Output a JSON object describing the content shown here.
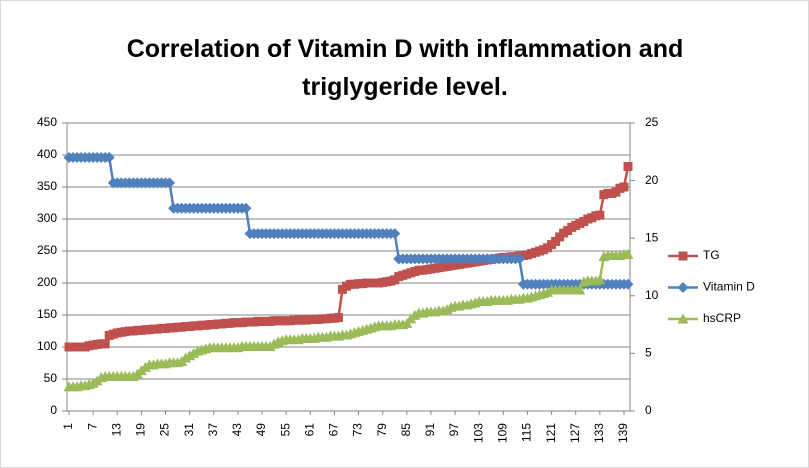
{
  "chart_data": {
    "type": "line",
    "title": "Correlation of Vitamin D with inflammation and triglygeride level.",
    "categories": [
      1,
      null,
      null,
      null,
      null,
      null,
      7,
      null,
      null,
      null,
      null,
      null,
      13,
      null,
      null,
      null,
      null,
      null,
      19,
      null,
      null,
      null,
      null,
      null,
      25,
      null,
      null,
      null,
      null,
      null,
      31,
      null,
      null,
      null,
      null,
      null,
      37,
      null,
      null,
      null,
      null,
      null,
      43,
      null,
      null,
      null,
      null,
      null,
      49,
      null,
      null,
      null,
      null,
      null,
      55,
      null,
      null,
      null,
      null,
      null,
      61,
      null,
      null,
      null,
      null,
      null,
      67,
      null,
      null,
      null,
      null,
      null,
      73,
      null,
      null,
      null,
      null,
      null,
      79,
      null,
      null,
      null,
      null,
      null,
      85,
      null,
      null,
      null,
      null,
      null,
      91,
      null,
      null,
      null,
      null,
      null,
      97,
      null,
      null,
      null,
      null,
      null,
      103,
      null,
      null,
      null,
      null,
      null,
      109,
      null,
      null,
      null,
      null,
      null,
      115,
      null,
      null,
      null,
      null,
      null,
      121,
      null,
      null,
      null,
      null,
      null,
      127,
      null,
      null,
      null,
      null,
      null,
      133,
      null,
      null,
      null,
      null,
      null,
      139,
      null
    ],
    "series": [
      {
        "name": "TG",
        "color": "#c0504d",
        "marker": "square",
        "values": [
          100,
          100,
          100,
          100,
          100,
          102,
          103,
          104,
          105,
          105,
          118,
          120,
          122,
          123,
          124,
          125,
          125,
          126,
          126,
          127,
          127,
          128,
          128,
          129,
          129,
          130,
          130,
          131,
          131,
          132,
          132,
          133,
          133,
          134,
          134,
          135,
          135,
          136,
          136,
          137,
          137,
          138,
          138,
          138,
          139,
          139,
          139,
          140,
          140,
          140,
          140,
          141,
          141,
          141,
          141,
          141,
          142,
          142,
          142,
          142,
          143,
          143,
          143,
          144,
          144,
          145,
          145,
          146,
          190,
          195,
          198,
          198,
          199,
          199,
          200,
          200,
          200,
          200,
          201,
          202,
          203,
          205,
          210,
          212,
          214,
          216,
          218,
          220,
          220,
          221,
          222,
          223,
          224,
          225,
          226,
          227,
          228,
          229,
          230,
          231,
          232,
          233,
          234,
          235,
          236,
          237,
          238,
          239,
          240,
          240,
          241,
          241,
          242,
          243,
          244,
          246,
          248,
          250,
          252,
          255,
          260,
          265,
          272,
          278,
          282,
          287,
          290,
          293,
          296,
          300,
          302,
          305,
          306,
          338,
          340,
          340,
          342,
          348,
          350,
          382
        ]
      },
      {
        "name": "Vitamin D",
        "color": "#4f81bd",
        "marker": "diamond",
        "axis": "y2",
        "values": [
          22,
          22,
          22,
          22,
          22,
          22,
          22,
          22,
          22,
          22,
          22,
          19.8,
          19.8,
          19.8,
          19.8,
          19.8,
          19.8,
          19.8,
          19.8,
          19.8,
          19.8,
          19.8,
          19.8,
          19.8,
          19.8,
          19.8,
          17.6,
          17.6,
          17.6,
          17.6,
          17.6,
          17.6,
          17.6,
          17.6,
          17.6,
          17.6,
          17.6,
          17.6,
          17.6,
          17.6,
          17.6,
          17.6,
          17.6,
          17.6,
          17.6,
          15.4,
          15.4,
          15.4,
          15.4,
          15.4,
          15.4,
          15.4,
          15.4,
          15.4,
          15.4,
          15.4,
          15.4,
          15.4,
          15.4,
          15.4,
          15.4,
          15.4,
          15.4,
          15.4,
          15.4,
          15.4,
          15.4,
          15.4,
          15.4,
          15.4,
          15.4,
          15.4,
          15.4,
          15.4,
          15.4,
          15.4,
          15.4,
          15.4,
          15.4,
          15.4,
          15.4,
          15.4,
          13.2,
          13.2,
          13.2,
          13.2,
          13.2,
          13.2,
          13.2,
          13.2,
          13.2,
          13.2,
          13.2,
          13.2,
          13.2,
          13.2,
          13.2,
          13.2,
          13.2,
          13.2,
          13.2,
          13.2,
          13.2,
          13.2,
          13.2,
          13.2,
          13.2,
          13.2,
          13.2,
          13.2,
          13.2,
          13.2,
          13.2,
          11,
          11,
          11,
          11,
          11,
          11,
          11,
          11,
          11,
          11,
          11,
          11,
          11,
          11,
          11,
          11,
          11,
          11,
          11,
          11,
          11,
          11,
          11,
          11,
          11,
          11,
          11
        ]
      },
      {
        "name": "hsCRP",
        "color": "#9bbb59",
        "marker": "triangle",
        "axis": "y2",
        "values": [
          2.1,
          2.1,
          2.1,
          2.2,
          2.2,
          2.3,
          2.4,
          2.6,
          2.9,
          3.0,
          3.0,
          3.0,
          3.0,
          3.0,
          3.0,
          3.0,
          3.0,
          3.2,
          3.5,
          3.8,
          4.0,
          4.0,
          4.1,
          4.1,
          4.1,
          4.2,
          4.2,
          4.2,
          4.3,
          4.6,
          4.8,
          5.0,
          5.2,
          5.3,
          5.4,
          5.5,
          5.5,
          5.5,
          5.5,
          5.5,
          5.5,
          5.5,
          5.5,
          5.6,
          5.6,
          5.6,
          5.6,
          5.6,
          5.6,
          5.6,
          5.6,
          5.8,
          6.0,
          6.1,
          6.2,
          6.2,
          6.2,
          6.2,
          6.3,
          6.3,
          6.3,
          6.3,
          6.4,
          6.4,
          6.4,
          6.5,
          6.5,
          6.5,
          6.6,
          6.6,
          6.7,
          6.8,
          6.9,
          7.0,
          7.1,
          7.2,
          7.3,
          7.4,
          7.4,
          7.4,
          7.4,
          7.5,
          7.5,
          7.5,
          7.6,
          8.0,
          8.3,
          8.5,
          8.5,
          8.6,
          8.6,
          8.6,
          8.7,
          8.7,
          8.8,
          9.0,
          9.1,
          9.1,
          9.2,
          9.2,
          9.3,
          9.4,
          9.5,
          9.5,
          9.5,
          9.6,
          9.6,
          9.6,
          9.6,
          9.6,
          9.7,
          9.7,
          9.7,
          9.8,
          9.8,
          9.9,
          10.0,
          10.1,
          10.2,
          10.3,
          10.5,
          10.5,
          10.5,
          10.5,
          10.5,
          10.5,
          10.5,
          10.5,
          11.2,
          11.3,
          11.3,
          11.3,
          11.4,
          13.4,
          13.5,
          13.5,
          13.5,
          13.5,
          13.6,
          13.6
        ]
      }
    ],
    "ylim": [
      0,
      450
    ],
    "yticks": [
      0,
      50,
      100,
      150,
      200,
      250,
      300,
      350,
      400,
      450
    ],
    "y2lim": [
      0,
      25
    ],
    "y2ticks": [
      0,
      5,
      10,
      15,
      20,
      25
    ],
    "grid": true,
    "legend": "right"
  }
}
